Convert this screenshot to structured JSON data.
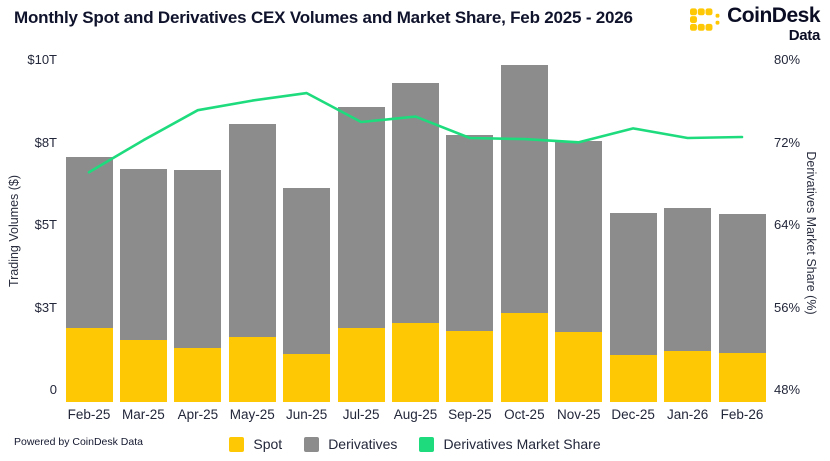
{
  "header": {
    "title": "Monthly Spot and Derivatives CEX Volumes and Market Share, Feb 2025 - 2026"
  },
  "logo": {
    "brand": "CoinDesk",
    "sub": "Data"
  },
  "footer": {
    "powered_by": "Powered by CoinDesk Data"
  },
  "colors": {
    "spot": "#FFC805",
    "derivatives": "#8C8C8C",
    "share_line": "#1EDC7E",
    "text_dark": "#10132c"
  },
  "legend": [
    {
      "label": "Spot",
      "color": "#FFC805"
    },
    {
      "label": "Derivatives",
      "color": "#8C8C8C"
    },
    {
      "label": "Derivatives Market Share",
      "color": "#1EDC7E"
    }
  ],
  "chart_data": {
    "type": "bar",
    "subtype": "stacked-bars-with-line-overlay",
    "title": "Monthly Spot and Derivatives CEX Volumes and Market Share, Feb 2025 - 2026",
    "categories": [
      "Feb-25",
      "Mar-25",
      "Apr-25",
      "May-25",
      "Jun-25",
      "Jul-25",
      "Aug-25",
      "Sep-25",
      "Oct-25",
      "Nov-25",
      "Dec-25",
      "Jan-26",
      "Feb-26"
    ],
    "series": [
      {
        "name": "Spot",
        "type": "bar",
        "stack": "volumes",
        "axis": "left",
        "unit": "$T",
        "color": "#FFC805",
        "values": [
          2.15,
          1.82,
          1.58,
          1.91,
          1.4,
          2.17,
          2.32,
          2.08,
          2.61,
          2.05,
          1.38,
          1.5,
          1.44
        ]
      },
      {
        "name": "Derivatives",
        "type": "bar",
        "stack": "volumes",
        "axis": "left",
        "unit": "$T",
        "color": "#8C8C8C",
        "values": [
          5.0,
          4.98,
          5.19,
          6.21,
          4.85,
          6.45,
          7.01,
          5.72,
          7.24,
          5.57,
          4.16,
          4.16,
          4.07
        ]
      },
      {
        "name": "Derivatives Market Share",
        "type": "line",
        "axis": "right",
        "unit": "%",
        "color": "#1EDC7E",
        "values": [
          69.5,
          72.5,
          75.3,
          76.2,
          76.9,
          74.2,
          74.7,
          72.7,
          72.6,
          72.3,
          73.6,
          72.7,
          72.8
        ]
      }
    ],
    "left_axis": {
      "label": "Trading Volumes ($)",
      "tick_labels": [
        "0",
        "$3T",
        "$5T",
        "$8T",
        "$10T"
      ],
      "tick_values": [
        0,
        2.5,
        5,
        7.5,
        10
      ],
      "range": [
        0,
        10
      ]
    },
    "right_axis": {
      "label": "Derivatives Market Share (%)",
      "tick_labels": [
        "48%",
        "56%",
        "64%",
        "72%",
        "80%"
      ],
      "tick_values": [
        48,
        56,
        64,
        72,
        80
      ],
      "range": [
        48,
        80
      ]
    },
    "grid": false,
    "legend_position": "bottom"
  }
}
